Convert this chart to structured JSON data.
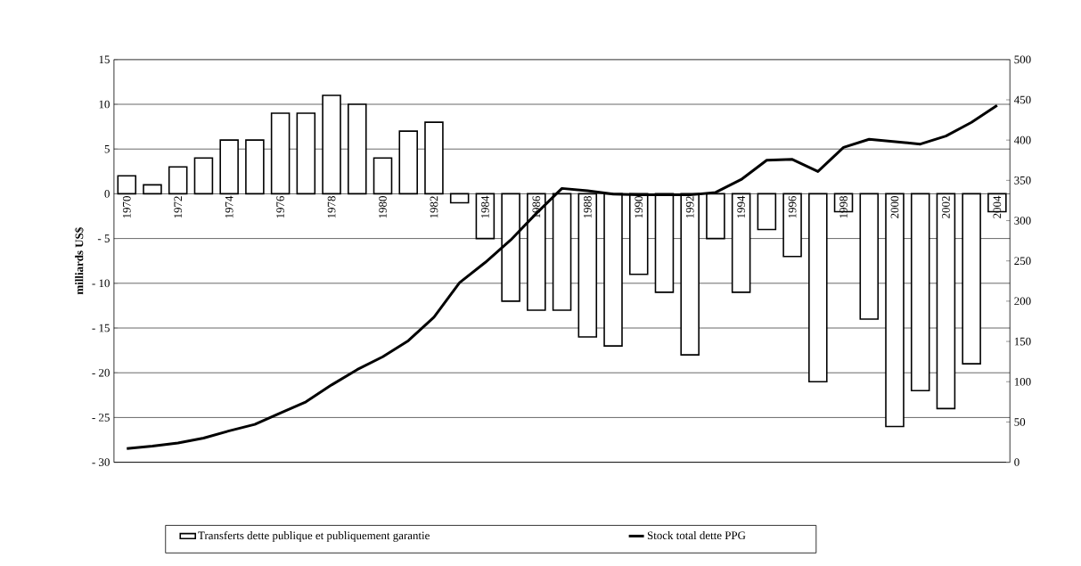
{
  "chart_data": {
    "type": "bar",
    "ylabel": "milliards US$",
    "categories": [
      "1970",
      null,
      "1972",
      null,
      "1974",
      null,
      "1976",
      null,
      "1978",
      null,
      "1980",
      null,
      "1982",
      null,
      "1984",
      null,
      "1986",
      null,
      "1988",
      null,
      "1990",
      null,
      "1992",
      null,
      "1994",
      null,
      "1996",
      null,
      "1998",
      null,
      "2000",
      null,
      "2002",
      null,
      "2004"
    ],
    "series": [
      {
        "name": "Transferts dette publique et publiquement garantie",
        "color": "#ffffff",
        "values": [
          2,
          1,
          3,
          4,
          6,
          6,
          9,
          9,
          11,
          10,
          4,
          7,
          8,
          -1,
          -5,
          -12,
          -13,
          -13,
          -16,
          -17,
          -9,
          -11,
          -18,
          -5,
          -11,
          -4,
          -7,
          -21,
          -2,
          -14,
          -26,
          -22,
          -24,
          -19,
          -2
        ]
      },
      {
        "name": "Stock total dette PPG",
        "type": "line",
        "axis": "y2",
        "color": "#000000",
        "values": [
          17,
          20,
          24,
          30,
          39,
          47,
          61,
          75,
          96,
          115,
          131,
          151,
          180,
          223,
          248,
          276,
          309,
          340,
          337,
          333,
          332,
          332,
          332,
          335,
          351,
          375,
          376,
          361,
          391,
          401,
          398,
          395,
          405,
          422,
          443
        ]
      }
    ],
    "ylim": [
      -30,
      15
    ],
    "yticks": [
      {
        "value": -30,
        "label": "- 30"
      },
      {
        "value": -25,
        "label": "- 25"
      },
      {
        "value": -20,
        "label": "- 20"
      },
      {
        "value": -15,
        "label": "- 15"
      },
      {
        "value": -10,
        "label": "- 10"
      },
      {
        "value": -5,
        "label": "- 5"
      },
      0,
      5,
      10,
      15
    ],
    "y2lim": [
      0,
      500
    ],
    "y2ticks": [
      0,
      50,
      100,
      150,
      200,
      250,
      300,
      350,
      400,
      450,
      500
    ],
    "grid": "y",
    "legend": "bottom"
  }
}
